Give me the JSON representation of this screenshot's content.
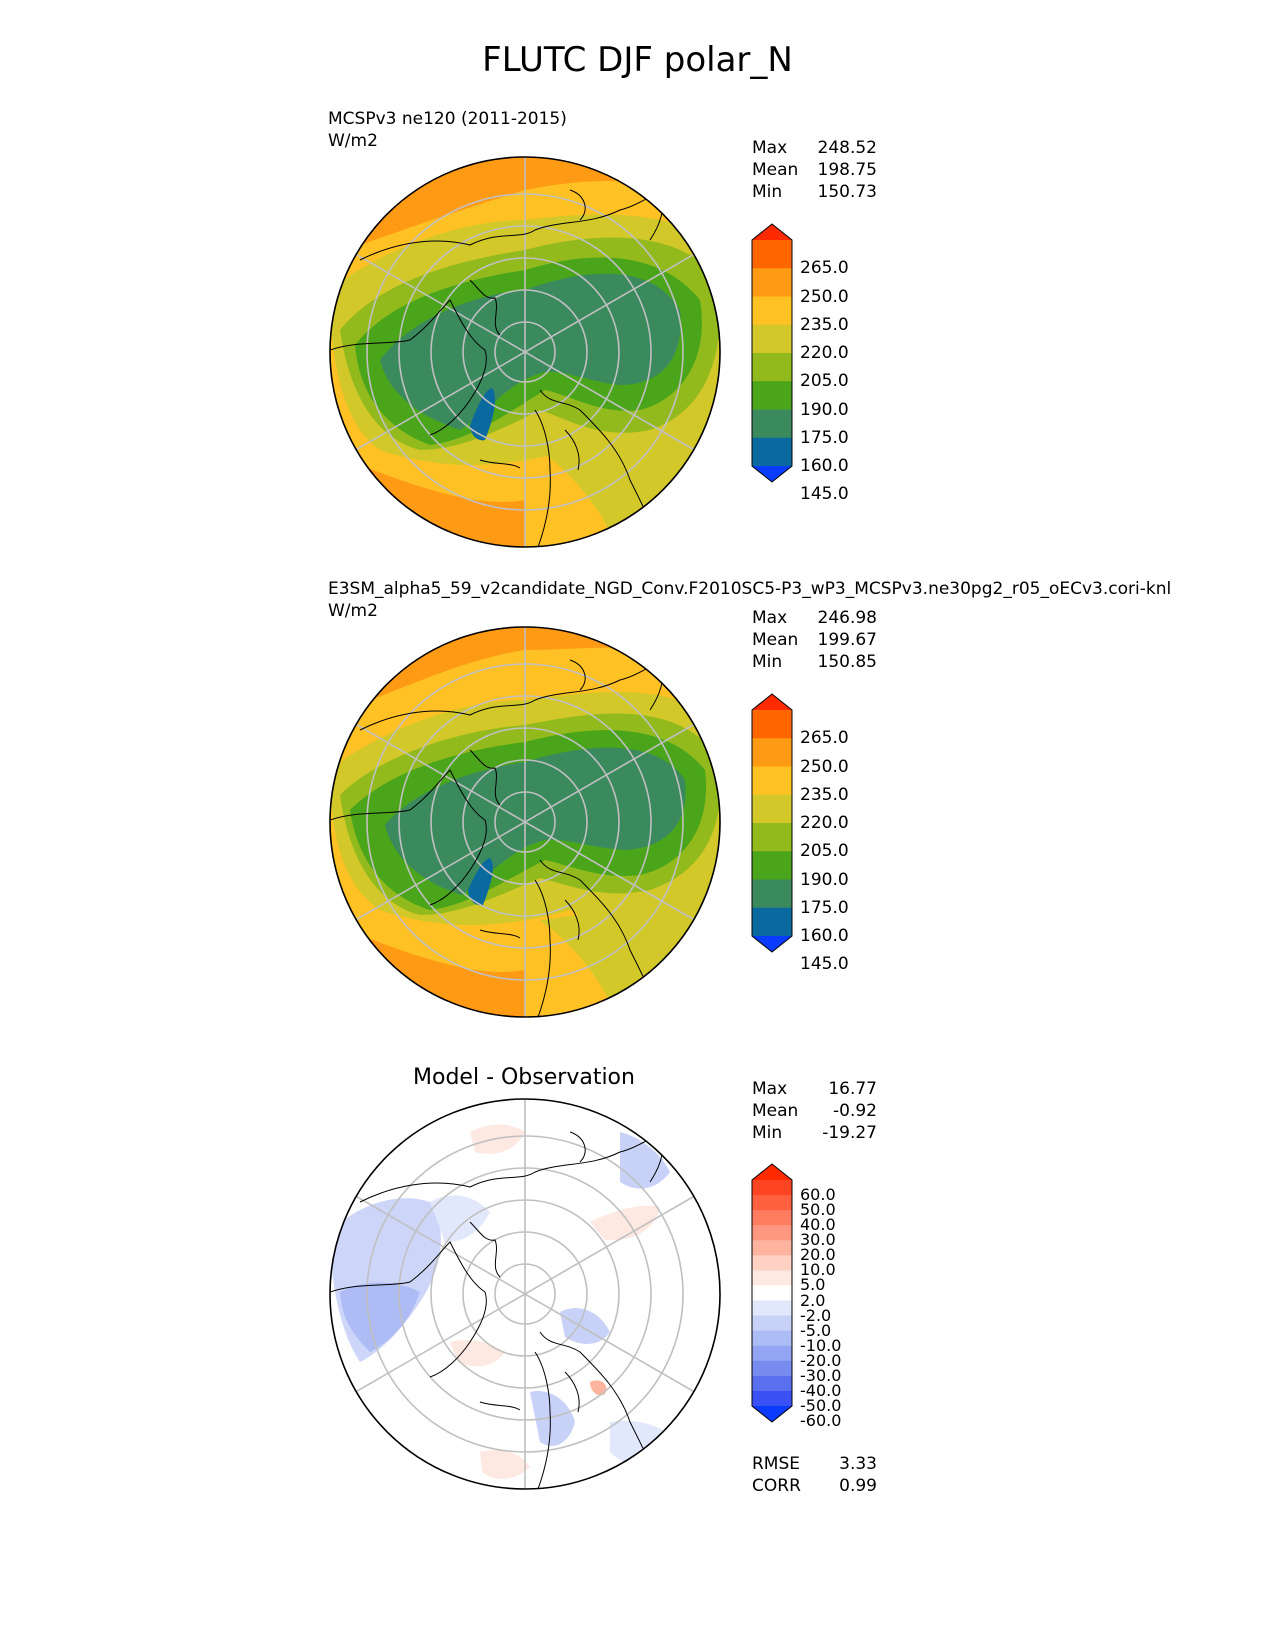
{
  "figure": {
    "title": "FLUTC DJF polar_N"
  },
  "panels": [
    {
      "id": "test",
      "subtitle": "MCSPv3 ne120 (2011-2015)",
      "units": "W/m2",
      "stats": {
        "max_label": "Max",
        "max_value": "248.52",
        "mean_label": "Mean",
        "mean_value": "198.75",
        "min_label": "Min",
        "min_value": "150.73"
      }
    },
    {
      "id": "reference",
      "subtitle": "E3SM_alpha5_59_v2candidate_NGD_Conv.F2010SC5-P3_wP3_MCSPv3.ne30pg2_r05_oECv3.cori-knl",
      "units": "W/m2",
      "stats": {
        "max_label": "Max",
        "max_value": "246.98",
        "mean_label": "Mean",
        "mean_value": "199.67",
        "min_label": "Min",
        "min_value": "150.85"
      }
    },
    {
      "id": "difference",
      "subtitle": "Model - Observation",
      "stats": {
        "max_label": "Max",
        "max_value": "16.77",
        "mean_label": "Mean",
        "mean_value": "-0.92",
        "min_label": "Min",
        "min_value": "-19.27"
      },
      "metrics": {
        "rmse_label": "RMSE",
        "rmse_value": "3.33",
        "corr_label": "CORR",
        "corr_value": "0.99"
      }
    }
  ],
  "colorbars": {
    "main": {
      "labels": [
        "265.0",
        "250.0",
        "235.0",
        "220.0",
        "205.0",
        "190.0",
        "175.0",
        "160.0",
        "145.0"
      ],
      "colors_top_to_bottom": [
        "#ff2a00",
        "#ff6600",
        "#ff9a14",
        "#ffc124",
        "#d2c82a",
        "#93ba1c",
        "#4aa51a",
        "#3a8a5e",
        "#0a6aa0",
        "#0a3cff"
      ]
    },
    "diff": {
      "labels": [
        "60.0",
        "50.0",
        "40.0",
        "30.0",
        "20.0",
        "10.0",
        "5.0",
        "2.0",
        "-2.0",
        "-5.0",
        "-10.0",
        "-20.0",
        "-30.0",
        "-40.0",
        "-50.0",
        "-60.0"
      ],
      "colors_top_to_bottom": [
        "#ff2a00",
        "#ff4422",
        "#ff6040",
        "#ff7c60",
        "#ff9880",
        "#ffb4a0",
        "#ffd0c4",
        "#fde8e2",
        "#ffffff",
        "#e2e8fb",
        "#c8d2f8",
        "#aebcf5",
        "#92a4f2",
        "#788cf0",
        "#5a70f0",
        "#3a52f5",
        "#0a3cff"
      ]
    }
  }
}
